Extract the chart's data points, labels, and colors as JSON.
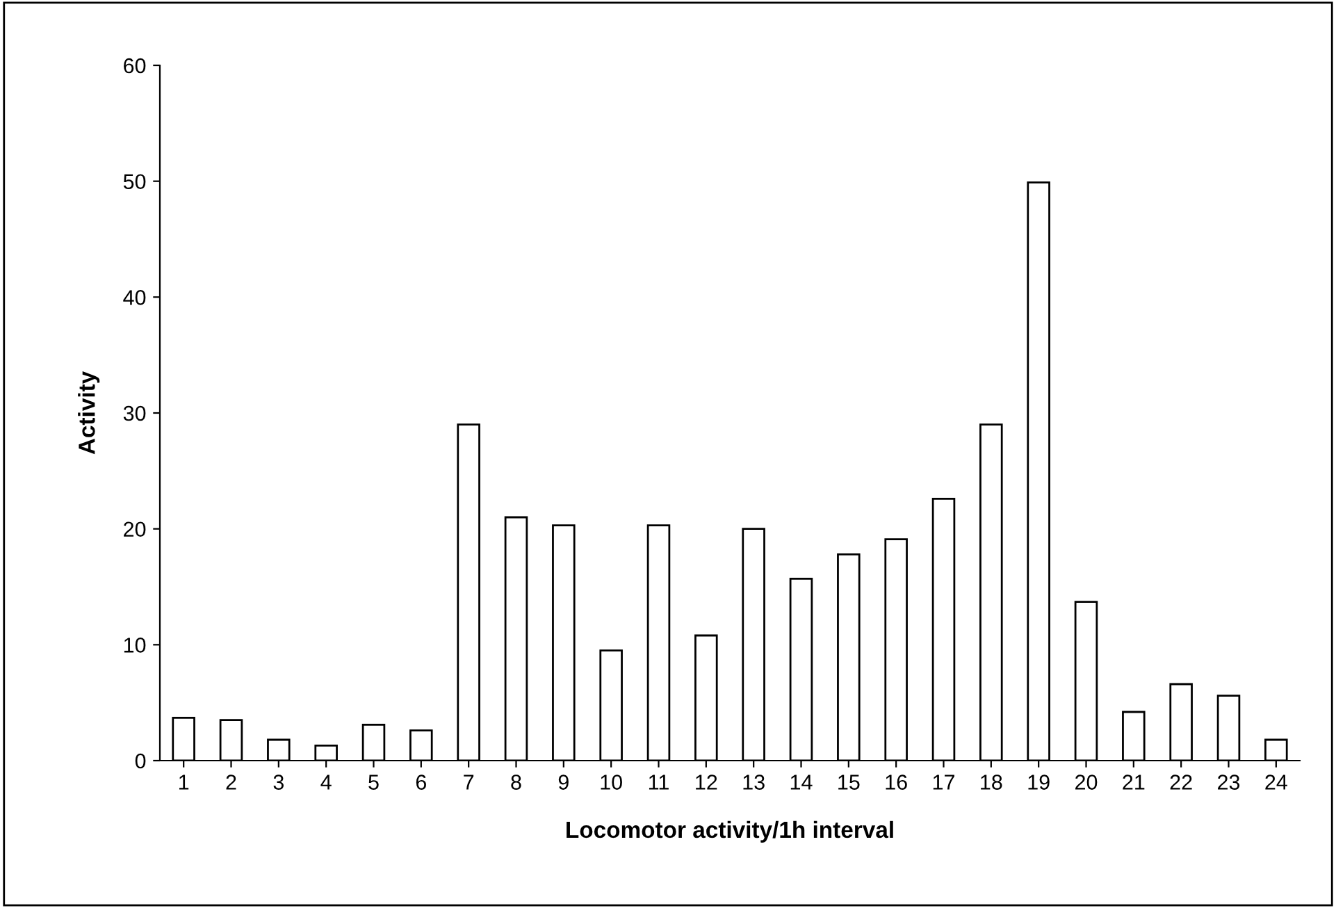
{
  "chart_data": {
    "type": "bar",
    "xlabel": "Locomotor activity/1h interval",
    "ylabel": "Activity",
    "categories": [
      "1",
      "2",
      "3",
      "4",
      "5",
      "6",
      "7",
      "8",
      "9",
      "10",
      "11",
      "12",
      "13",
      "14",
      "15",
      "16",
      "17",
      "18",
      "19",
      "20",
      "21",
      "22",
      "23",
      "24"
    ],
    "values": [
      3.7,
      3.5,
      1.8,
      1.3,
      3.1,
      2.6,
      29.0,
      21.0,
      20.3,
      9.5,
      20.3,
      10.8,
      20.0,
      15.7,
      17.8,
      19.1,
      22.6,
      29.0,
      49.9,
      13.7,
      4.2,
      6.6,
      5.6,
      1.8
    ],
    "color": "#ffffff",
    "ylim": [
      0,
      60
    ],
    "yticks": [
      0,
      10,
      20,
      30,
      40,
      50,
      60
    ],
    "grid": false,
    "legend": false
  }
}
